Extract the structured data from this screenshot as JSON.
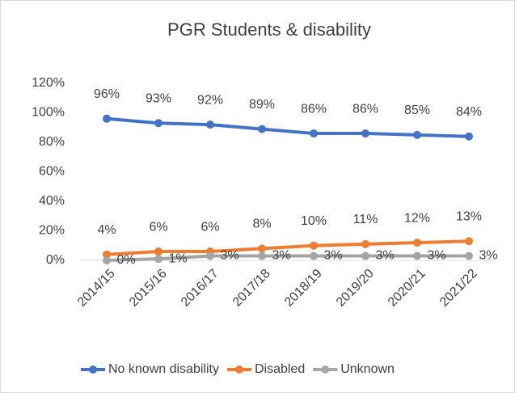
{
  "chart_data": {
    "type": "line",
    "title": "PGR Students & disability",
    "categories": [
      "2014/15",
      "2015/16",
      "2016/17",
      "2017/18",
      "2018/19",
      "2019/20",
      "2020/21",
      "2021/22"
    ],
    "series": [
      {
        "name": "No known disability",
        "color": "#4472c4",
        "values": [
          96,
          93,
          92,
          89,
          86,
          86,
          85,
          84
        ],
        "value_labels": [
          "96%",
          "93%",
          "92%",
          "89%",
          "86%",
          "86%",
          "85%",
          "84%"
        ]
      },
      {
        "name": "Disabled",
        "color": "#ed7d31",
        "values": [
          4,
          6,
          6,
          8,
          10,
          11,
          12,
          13
        ],
        "value_labels": [
          "4%",
          "6%",
          "6%",
          "8%",
          "10%",
          "11%",
          "12%",
          "13%"
        ]
      },
      {
        "name": "Unknown",
        "color": "#a5a5a5",
        "values": [
          0,
          1,
          3,
          3,
          3,
          3,
          3,
          3
        ],
        "value_labels": [
          "0%",
          "1%",
          "3%",
          "3%",
          "3%",
          "3%",
          "3%",
          "3%"
        ]
      }
    ],
    "ylim": [
      0,
      120
    ],
    "yticks": [
      {
        "value": 0,
        "label": "0%"
      },
      {
        "value": 20,
        "label": "20%"
      },
      {
        "value": 40,
        "label": "40%"
      },
      {
        "value": 60,
        "label": "60%"
      },
      {
        "value": 80,
        "label": "80%"
      },
      {
        "value": 100,
        "label": "100%"
      },
      {
        "value": 120,
        "label": "120%"
      }
    ],
    "legend": "bottom"
  }
}
